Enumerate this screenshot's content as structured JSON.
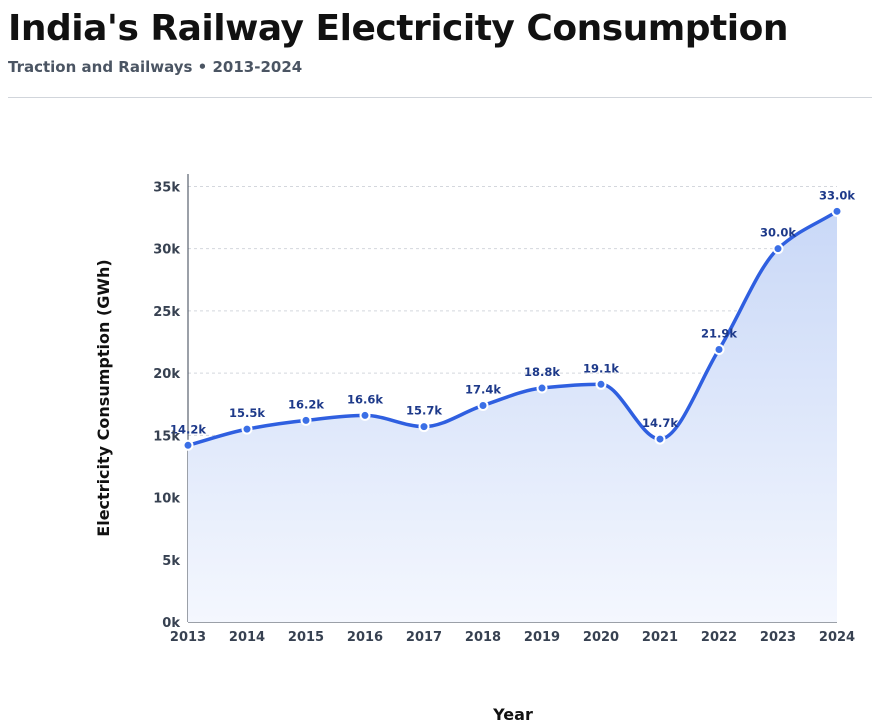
{
  "header": {
    "title": "India's Railway Electricity Consumption",
    "subtitle": "Traction and Railways • 2013-2024"
  },
  "colors": {
    "line": "#2f5fe0",
    "point": "#3b6fe6",
    "area_top": "#c9d8f7",
    "area_bottom": "#f4f7fe",
    "grid": "#d4d7dd",
    "label": "#1e3a8a"
  },
  "chart_data": {
    "type": "area",
    "title": "India's Railway Electricity Consumption",
    "subtitle": "Traction and Railways • 2013-2024",
    "xlabel": "Year",
    "ylabel": "Electricity Consumption (GWh)",
    "categories": [
      "2013",
      "2014",
      "2015",
      "2016",
      "2017",
      "2018",
      "2019",
      "2020",
      "2021",
      "2022",
      "2023",
      "2024"
    ],
    "values": [
      14200,
      15500,
      16200,
      16600,
      15700,
      17400,
      18800,
      19100,
      14700,
      21900,
      30000,
      33000
    ],
    "data_labels": [
      "14.2k",
      "15.5k",
      "16.2k",
      "16.6k",
      "15.7k",
      "17.4k",
      "18.8k",
      "19.1k",
      "14.7k",
      "21.9k",
      "30.0k",
      "33.0k"
    ],
    "ylim": [
      0,
      36000
    ],
    "yticks": [
      0,
      5000,
      10000,
      15000,
      20000,
      25000,
      30000,
      35000
    ],
    "ytick_labels": [
      "0k",
      "5k",
      "10k",
      "15k",
      "20k",
      "25k",
      "30k",
      "35k"
    ],
    "grid": true,
    "smooth": true
  }
}
